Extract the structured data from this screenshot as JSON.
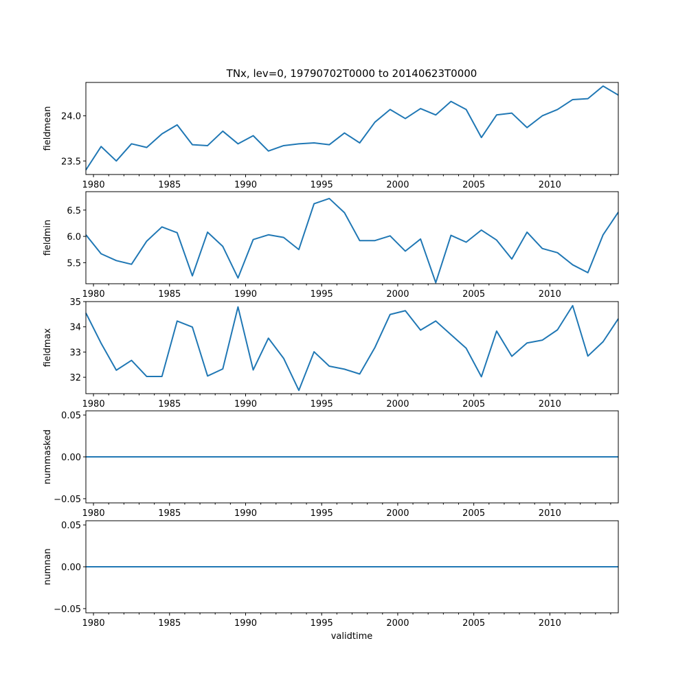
{
  "chart_data": {
    "type": "line",
    "title": "TNx, lev=0, 19790702T0000 to 20140623T0000",
    "xlabel": "validtime",
    "line_color": "#1f77b4",
    "xlim": [
      1979.5,
      2014.5
    ],
    "xticks": [
      1980,
      1985,
      1990,
      1995,
      2000,
      2005,
      2010
    ],
    "xtick_labels": [
      "1980",
      "1985",
      "1990",
      "1995",
      "2000",
      "2005",
      "2010"
    ],
    "x": [
      1979.5,
      1980.5,
      1981.5,
      1982.5,
      1983.5,
      1984.5,
      1985.5,
      1986.5,
      1987.5,
      1988.5,
      1989.5,
      1990.5,
      1991.5,
      1992.5,
      1993.5,
      1994.5,
      1995.5,
      1996.5,
      1997.5,
      1998.5,
      1999.5,
      2000.5,
      2001.5,
      2002.5,
      2003.5,
      2004.5,
      2005.5,
      2006.5,
      2007.5,
      2008.5,
      2009.5,
      2010.5,
      2011.5,
      2012.5,
      2013.5,
      2014.5
    ],
    "panels": [
      {
        "ylabel": "fieldmean",
        "ylim": [
          23.35,
          24.37
        ],
        "yticks": [
          23.5,
          24.0
        ],
        "ytick_labels": [
          "23.5",
          "24.0"
        ],
        "values": [
          23.4,
          23.66,
          23.5,
          23.69,
          23.65,
          23.8,
          23.9,
          23.68,
          23.67,
          23.83,
          23.69,
          23.78,
          23.61,
          23.67,
          23.69,
          23.7,
          23.68,
          23.81,
          23.7,
          23.93,
          24.07,
          23.97,
          24.08,
          24.01,
          24.16,
          24.07,
          23.76,
          24.01,
          24.03,
          23.87,
          24.0,
          24.07,
          24.18,
          24.19,
          24.33,
          24.23
        ]
      },
      {
        "ylabel": "fieldmin",
        "ylim": [
          5.1,
          6.85
        ],
        "yticks": [
          5.5,
          6.0,
          6.5
        ],
        "ytick_labels": [
          "5.5",
          "6.0",
          "6.5"
        ],
        "values": [
          6.03,
          5.67,
          5.54,
          5.47,
          5.91,
          6.18,
          6.07,
          5.25,
          6.08,
          5.81,
          5.21,
          5.94,
          6.03,
          5.98,
          5.75,
          6.62,
          6.72,
          6.45,
          5.92,
          5.92,
          6.01,
          5.72,
          5.95,
          5.12,
          6.02,
          5.89,
          6.12,
          5.93,
          5.57,
          6.08,
          5.77,
          5.69,
          5.46,
          5.31,
          6.03,
          6.46
        ]
      },
      {
        "ylabel": "fieldmax",
        "ylim": [
          31.35,
          35.0
        ],
        "yticks": [
          32,
          33,
          34,
          35
        ],
        "ytick_labels": [
          "32",
          "33",
          "34",
          "35"
        ],
        "values": [
          34.55,
          33.35,
          32.28,
          32.67,
          32.03,
          32.03,
          34.23,
          33.99,
          32.05,
          32.33,
          34.79,
          32.29,
          33.55,
          32.75,
          31.48,
          33.01,
          32.44,
          32.32,
          32.13,
          33.18,
          34.49,
          34.64,
          33.87,
          34.23,
          33.69,
          33.15,
          32.02,
          33.83,
          32.83,
          33.36,
          33.47,
          33.88,
          34.84,
          32.84,
          33.41,
          34.32
        ]
      },
      {
        "ylabel": "nummasked",
        "ylim": [
          -0.055,
          0.055
        ],
        "yticks": [
          -0.05,
          0.0,
          0.05
        ],
        "ytick_labels": [
          "−0.05",
          "0.00",
          "0.05"
        ],
        "values": [
          0,
          0,
          0,
          0,
          0,
          0,
          0,
          0,
          0,
          0,
          0,
          0,
          0,
          0,
          0,
          0,
          0,
          0,
          0,
          0,
          0,
          0,
          0,
          0,
          0,
          0,
          0,
          0,
          0,
          0,
          0,
          0,
          0,
          0,
          0,
          0
        ]
      },
      {
        "ylabel": "numnan",
        "ylim": [
          -0.055,
          0.055
        ],
        "yticks": [
          -0.05,
          0.0,
          0.05
        ],
        "ytick_labels": [
          "−0.05",
          "0.00",
          "0.05"
        ],
        "values": [
          0,
          0,
          0,
          0,
          0,
          0,
          0,
          0,
          0,
          0,
          0,
          0,
          0,
          0,
          0,
          0,
          0,
          0,
          0,
          0,
          0,
          0,
          0,
          0,
          0,
          0,
          0,
          0,
          0,
          0,
          0,
          0,
          0,
          0,
          0,
          0
        ]
      }
    ]
  }
}
